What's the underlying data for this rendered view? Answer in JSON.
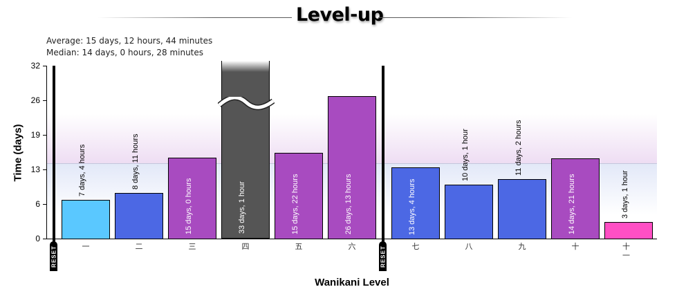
{
  "title": "Level-up",
  "stats": {
    "average": "Average: 15 days, 12 hours, 44 minutes",
    "median": "Median: 14 days, 0 hours, 28 minutes"
  },
  "axes": {
    "y_title": "Time (days)",
    "x_title": "Wanikani Level",
    "y_ticks": [
      "32",
      "26",
      "19",
      "13",
      "6",
      "0"
    ]
  },
  "reset_label": "RESET",
  "colors": {
    "light_blue": "#5AC8FF",
    "blue": "#4C68E4",
    "purple": "#A84BC0",
    "gray": "#555555",
    "pink": "#FF4FC4",
    "median_line": "#C4C6DC"
  },
  "bars": [
    {
      "level": "一",
      "label": "7 days, 4 hours"
    },
    {
      "level": "二",
      "label": "8 days, 11 hours"
    },
    {
      "level": "三",
      "label": "15 days, 0 hours"
    },
    {
      "level": "四",
      "label": "33 days, 1 hour"
    },
    {
      "level": "五",
      "label": "15 days, 22 hours"
    },
    {
      "level": "六",
      "label": "26 days, 13 hours"
    },
    {
      "level": "七",
      "label": "13 days, 4 hours"
    },
    {
      "level": "八",
      "label": "10 days, 1 hour"
    },
    {
      "level": "九",
      "label": "11 days, 2 hours"
    },
    {
      "level": "十",
      "label": "14 days, 21 hours"
    },
    {
      "level": "十一",
      "label": "3 days, 1 hour"
    }
  ],
  "chart_data": {
    "type": "bar",
    "title": "Level-up",
    "xlabel": "Wanikani Level",
    "ylabel": "Time (days)",
    "categories": [
      "一",
      "二",
      "三",
      "四",
      "五",
      "六",
      "七",
      "八",
      "九",
      "十",
      "十一"
    ],
    "values": [
      7.17,
      8.46,
      15.0,
      33.04,
      15.92,
      26.54,
      13.17,
      10.04,
      11.08,
      14.88,
      3.04
    ],
    "value_labels": [
      "7 days, 4 hours",
      "8 days, 11 hours",
      "15 days, 0 hours",
      "33 days, 1 hour",
      "15 days, 22 hours",
      "26 days, 13 hours",
      "13 days, 4 hours",
      "10 days, 1 hour",
      "11 days, 2 hours",
      "14 days, 21 hours",
      "3 days, 1 hour"
    ],
    "bar_colors": [
      "#5AC8FF",
      "#4C68E4",
      "#A84BC0",
      "#555555",
      "#A84BC0",
      "#A84BC0",
      "#4C68E4",
      "#4C68E4",
      "#4C68E4",
      "#A84BC0",
      "#FF4FC4"
    ],
    "ylim": [
      0,
      32
    ],
    "y_ticks": [
      0,
      6,
      13,
      19,
      26,
      32
    ],
    "clipped_bars": [
      "四"
    ],
    "annotations": [
      {
        "type": "reset-marker",
        "label": "RESET",
        "before_category": "一"
      },
      {
        "type": "reset-marker",
        "label": "RESET",
        "before_category": "七"
      },
      {
        "type": "median-line",
        "value": 14.02
      },
      {
        "text": "Average: 15 days, 12 hours, 44 minutes"
      },
      {
        "text": "Median: 14 days, 0 hours, 28 minutes"
      }
    ],
    "grid": false,
    "legend": "none"
  }
}
